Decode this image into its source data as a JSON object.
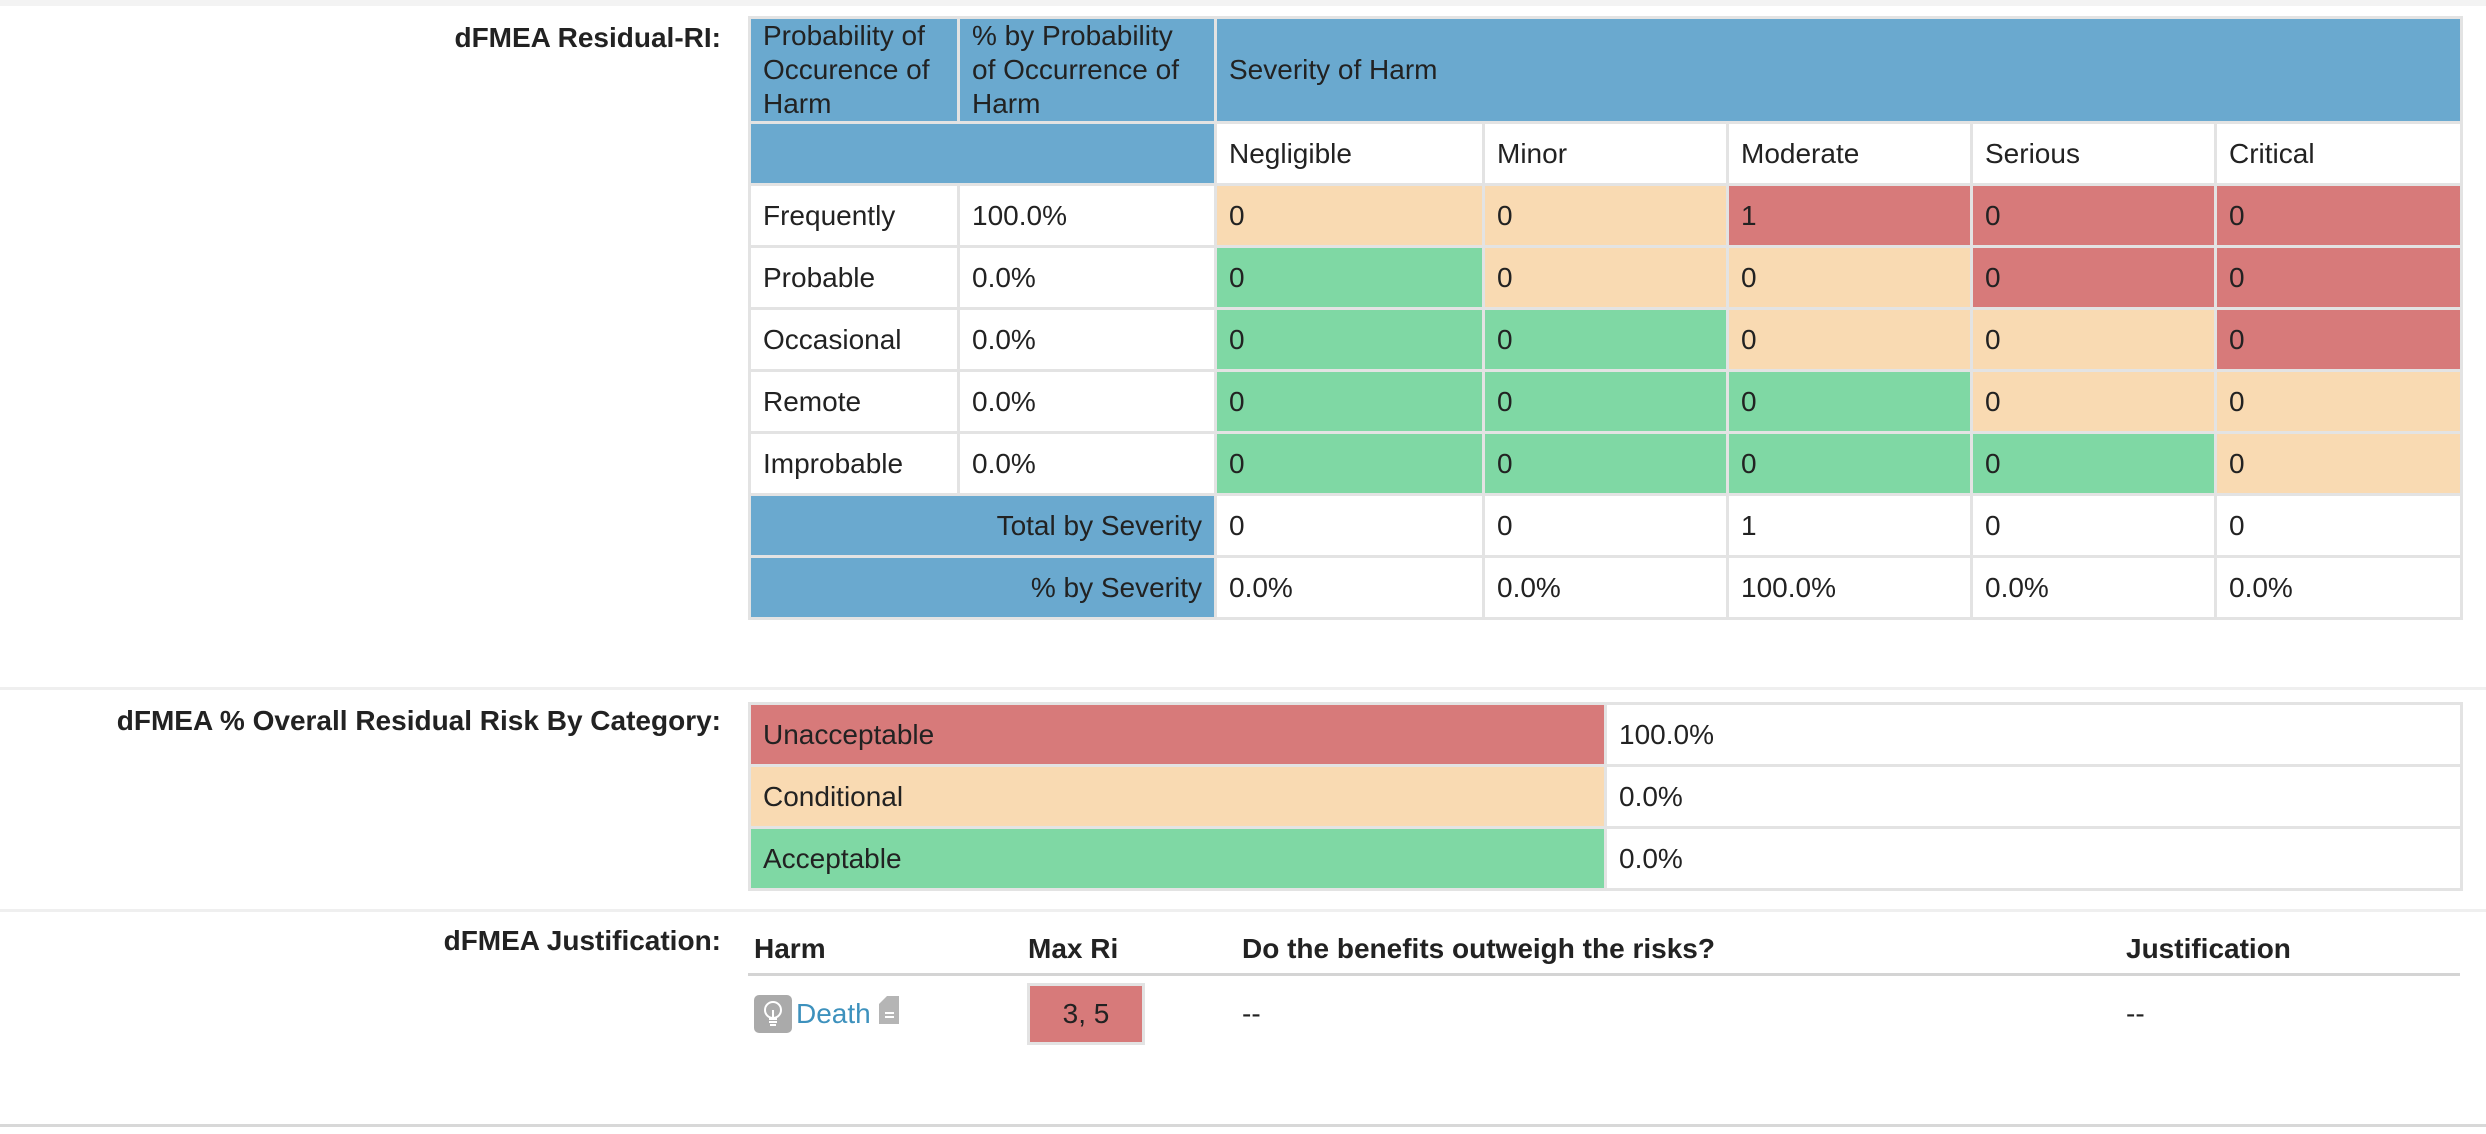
{
  "residual": {
    "label": "dFMEA Residual-RI:",
    "header": {
      "probability": "Probability of Occurence of Harm",
      "pct_probability": "% by Probability of Occurrence of Harm",
      "severity": "Severity of Harm"
    },
    "severities": [
      "Negligible",
      "Minor",
      "Moderate",
      "Serious",
      "Critical"
    ],
    "rows": [
      {
        "name": "Frequently",
        "pct": "100.0%",
        "cells": [
          {
            "v": "0",
            "c": "peach"
          },
          {
            "v": "0",
            "c": "peach"
          },
          {
            "v": "1",
            "c": "red"
          },
          {
            "v": "0",
            "c": "red"
          },
          {
            "v": "0",
            "c": "red"
          }
        ]
      },
      {
        "name": "Probable",
        "pct": "0.0%",
        "cells": [
          {
            "v": "0",
            "c": "green"
          },
          {
            "v": "0",
            "c": "peach"
          },
          {
            "v": "0",
            "c": "peach"
          },
          {
            "v": "0",
            "c": "red"
          },
          {
            "v": "0",
            "c": "red"
          }
        ]
      },
      {
        "name": "Occasional",
        "pct": "0.0%",
        "cells": [
          {
            "v": "0",
            "c": "green"
          },
          {
            "v": "0",
            "c": "green"
          },
          {
            "v": "0",
            "c": "peach"
          },
          {
            "v": "0",
            "c": "peach"
          },
          {
            "v": "0",
            "c": "red"
          }
        ]
      },
      {
        "name": "Remote",
        "pct": "0.0%",
        "cells": [
          {
            "v": "0",
            "c": "green"
          },
          {
            "v": "0",
            "c": "green"
          },
          {
            "v": "0",
            "c": "green"
          },
          {
            "v": "0",
            "c": "peach"
          },
          {
            "v": "0",
            "c": "peach"
          }
        ]
      },
      {
        "name": "Improbable",
        "pct": "0.0%",
        "cells": [
          {
            "v": "0",
            "c": "green"
          },
          {
            "v": "0",
            "c": "green"
          },
          {
            "v": "0",
            "c": "green"
          },
          {
            "v": "0",
            "c": "green"
          },
          {
            "v": "0",
            "c": "peach"
          }
        ]
      }
    ],
    "total_label": "Total by Severity",
    "totals": [
      "0",
      "0",
      "1",
      "0",
      "0"
    ],
    "pct_label": "% by Severity",
    "pcts": [
      "0.0%",
      "0.0%",
      "100.0%",
      "0.0%",
      "0.0%"
    ]
  },
  "overall": {
    "label": "dFMEA % Overall Residual Risk By Category:",
    "rows": [
      {
        "name": "Unacceptable",
        "value": "100.0%",
        "c": "red"
      },
      {
        "name": "Conditional",
        "value": "0.0%",
        "c": "peach"
      },
      {
        "name": "Acceptable",
        "value": "0.0%",
        "c": "green"
      }
    ]
  },
  "justification": {
    "label": "dFMEA Justification:",
    "headers": {
      "harm": "Harm",
      "max_ri": "Max Ri",
      "benefits": "Do the benefits outweigh the risks?",
      "justification": "Justification"
    },
    "row": {
      "harm": "Death",
      "max_ri": "3, 5",
      "benefits": "--",
      "justification": "--"
    }
  },
  "colors": {
    "header_blue": "#6aa9cf",
    "unacceptable": "#d77a7a",
    "conditional": "#f9dab2",
    "acceptable": "#7fd8a4",
    "link": "#3d91bd"
  }
}
